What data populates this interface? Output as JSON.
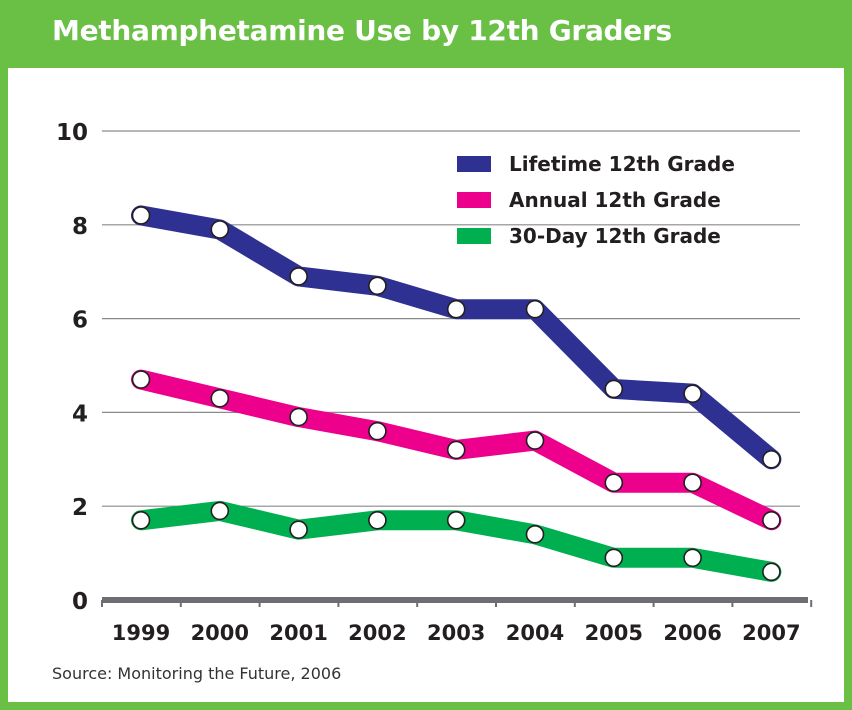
{
  "title": "Methamphetamine Use by 12th Graders",
  "source": "Source: Monitoring the Future, 2006",
  "colors": {
    "frame": "#6abf45",
    "title_text": "#ffffff"
  },
  "chart_data": {
    "type": "line",
    "title": "Methamphetamine Use by 12th Graders",
    "xlabel": "",
    "ylabel": "",
    "x": [
      "1999",
      "2000",
      "2001",
      "2002",
      "2003",
      "2004",
      "2005",
      "2006",
      "2007"
    ],
    "ylim": [
      0,
      10
    ],
    "yticks": [
      0,
      2,
      4,
      6,
      8,
      10
    ],
    "grid": true,
    "legend_position": "top-right",
    "series": [
      {
        "name": "Lifetime 12th Grade",
        "color": "#2e3192",
        "values": [
          8.2,
          7.9,
          6.9,
          6.7,
          6.2,
          6.2,
          4.5,
          4.4,
          3.0
        ]
      },
      {
        "name": "Annual 12th Grade",
        "color": "#ec008c",
        "values": [
          4.7,
          4.3,
          3.9,
          3.6,
          3.2,
          3.4,
          2.5,
          2.5,
          1.7
        ]
      },
      {
        "name": "30-Day 12th Grade",
        "color": "#00b050",
        "values": [
          1.7,
          1.9,
          1.5,
          1.7,
          1.7,
          1.4,
          0.9,
          0.9,
          0.6
        ]
      }
    ]
  }
}
